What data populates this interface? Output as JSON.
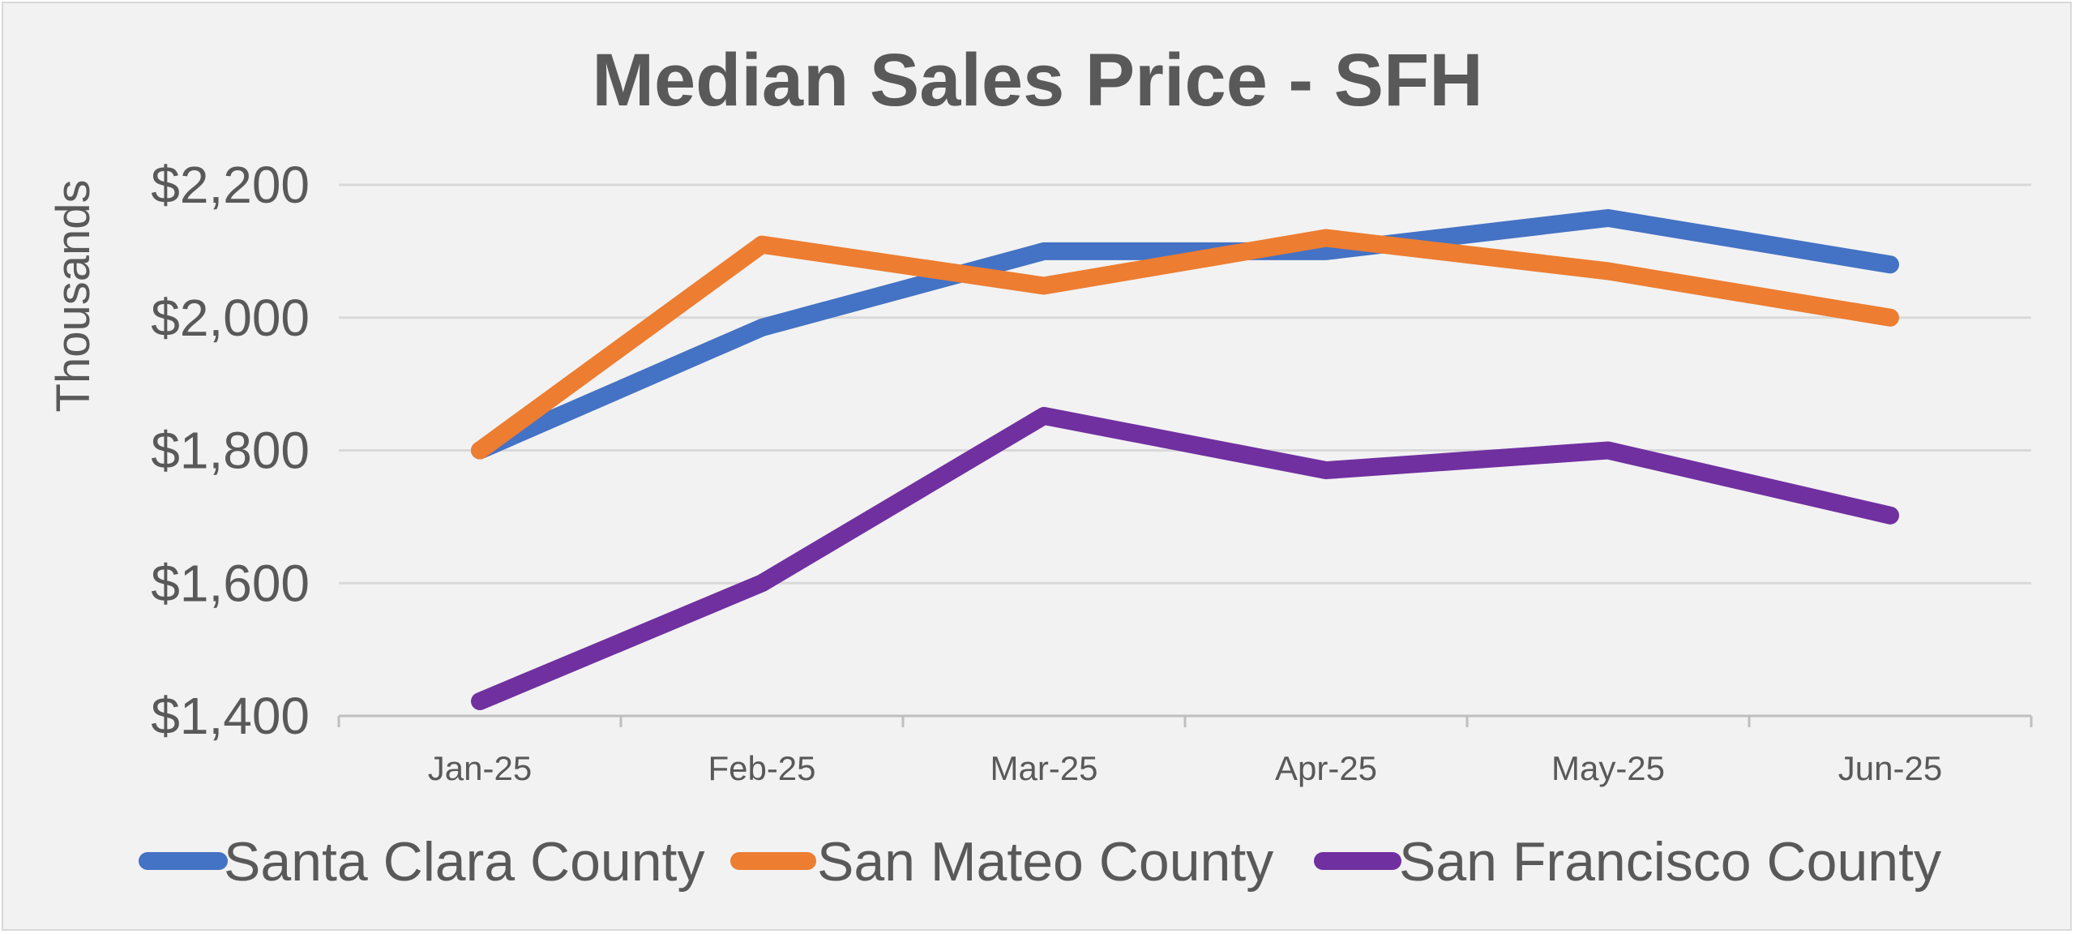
{
  "chart_data": {
    "type": "line",
    "title": "Median Sales Price - SFH",
    "xlabel": "",
    "ylabel": "Thousands",
    "categories": [
      "Jan-25",
      "Feb-25",
      "Mar-25",
      "Apr-25",
      "May-25",
      "Jun-25"
    ],
    "ylim": [
      1400,
      2200
    ],
    "yticks": [
      1400,
      1600,
      1800,
      2000,
      2200
    ],
    "ytick_labels": [
      "$1,400",
      "$1,600",
      "$1,800",
      "$2,000",
      "$2,200"
    ],
    "grid": true,
    "legend_position": "bottom",
    "series": [
      {
        "name": "Santa Clara County",
        "color": "#4472c4",
        "values": [
          1800,
          1985,
          2100,
          2100,
          2150,
          2080
        ]
      },
      {
        "name": "San Mateo County",
        "color": "#ed7d31",
        "values": [
          1800,
          2110,
          2048,
          2120,
          2070,
          2000
        ]
      },
      {
        "name": "San Francisco County",
        "color": "#7030a0",
        "values": [
          1422,
          1600,
          1852,
          1770,
          1800,
          1702
        ]
      }
    ]
  }
}
